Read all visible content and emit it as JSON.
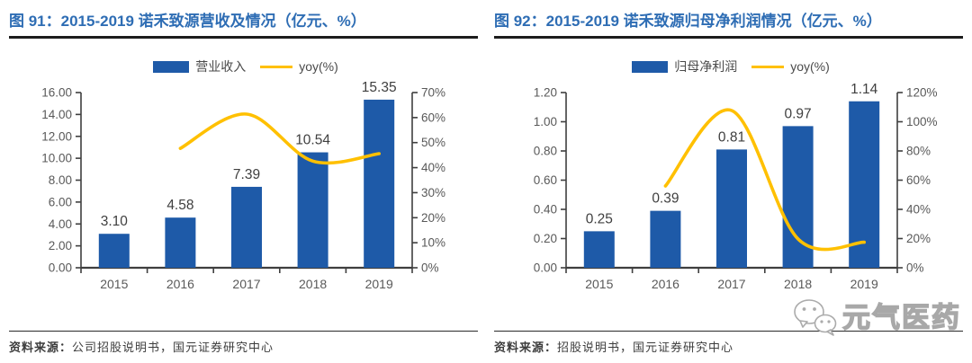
{
  "figures": [
    {
      "title": "图 91：2015-2019 诺禾致源营收及情况（亿元、%）",
      "legend": {
        "bar": "营业收入",
        "line": "yoy(%)"
      },
      "source_prefix": "资料来源：",
      "source": "公司招股说明书，国元证券研究中心"
    },
    {
      "title": "图 92：2015-2019 诺禾致源归母净利润情况（亿元、%）",
      "legend": {
        "bar": "归母净利润",
        "line": "yoy(%)"
      },
      "source_prefix": "资料来源：",
      "source": "招股说明书，国元证券研究中心"
    }
  ],
  "chart_data": [
    {
      "type": "bar",
      "title": "2015-2019 诺禾致源营收及情况（亿元、%）",
      "categories": [
        "2015",
        "2016",
        "2017",
        "2018",
        "2019"
      ],
      "series": [
        {
          "name": "营业收入",
          "kind": "bar",
          "axis": "left",
          "values": [
            3.1,
            4.58,
            7.39,
            10.54,
            15.35
          ],
          "labels": [
            "3.10",
            "4.58",
            "7.39",
            "10.54",
            "15.35"
          ]
        },
        {
          "name": "yoy(%)",
          "kind": "line",
          "axis": "right",
          "values": [
            null,
            47.7,
            61.4,
            42.6,
            45.6
          ]
        }
      ],
      "left_axis": {
        "min": 0,
        "max": 16,
        "step": 2,
        "format": "2dp"
      },
      "right_axis": {
        "min": 0,
        "max": 70,
        "step": 10,
        "format": "pct"
      },
      "grid": false,
      "legend_position": "top"
    },
    {
      "type": "bar",
      "title": "2015-2019 诺禾致源归母净利润情况（亿元、%）",
      "categories": [
        "2015",
        "2016",
        "2017",
        "2018",
        "2019"
      ],
      "series": [
        {
          "name": "归母净利润",
          "kind": "bar",
          "axis": "left",
          "values": [
            0.25,
            0.39,
            0.81,
            0.97,
            1.14
          ],
          "labels": [
            "0.25",
            "0.39",
            "0.81",
            "0.97",
            "1.14"
          ]
        },
        {
          "name": "yoy(%)",
          "kind": "line",
          "axis": "right",
          "values": [
            null,
            56.0,
            107.7,
            19.8,
            17.5
          ]
        }
      ],
      "left_axis": {
        "min": 0,
        "max": 1.2,
        "step": 0.2,
        "format": "2dp"
      },
      "right_axis": {
        "min": 0,
        "max": 120,
        "step": 20,
        "format": "pct"
      },
      "grid": false,
      "legend_position": "top"
    }
  ],
  "watermark": {
    "icon": "wechat-icon",
    "text": "元气医药"
  },
  "colors": {
    "bar": "#1e5aa8",
    "line": "#ffc000",
    "title": "#2e6db4",
    "axis": "#3f3f3f",
    "tick_text": "#595959",
    "label_text": "#3f3f3f"
  }
}
